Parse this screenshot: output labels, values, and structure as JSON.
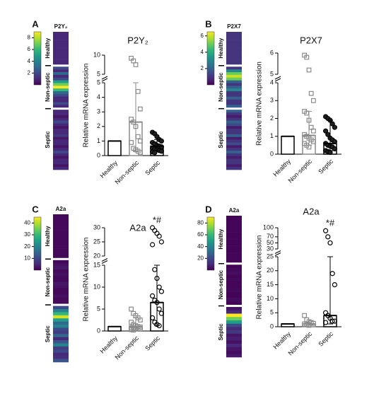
{
  "chart_data": [
    {
      "type": "bar",
      "panel": "A",
      "title": "P2Y₂",
      "ylabel": "Relative mRNA expression",
      "categories": [
        "Healthy",
        "Non-septic",
        "Septic"
      ],
      "values": [
        1,
        2.3,
        0.65
      ],
      "errors": [
        [
          1,
          1
        ],
        [
          0.3,
          5
        ],
        [
          0.35,
          1.1
        ]
      ],
      "bar_colors": [
        "#000000",
        "#8a8a8a",
        "#000000"
      ],
      "markers": [
        "square",
        "square",
        "circle"
      ],
      "marker_fill": [
        "none",
        "none",
        "#222222"
      ],
      "points": [
        [],
        [
          9.2,
          8.5,
          7.5,
          4.4,
          3.2,
          2.5,
          2.3,
          2.0,
          1.3,
          1.0,
          0.9,
          0.5,
          0.4,
          0.3,
          0.2
        ],
        [
          1.6,
          1.5,
          1.3,
          1.1,
          1.0,
          0.9,
          0.8,
          0.7,
          0.65,
          0.6,
          0.5,
          0.45,
          0.4,
          0.35,
          0.3,
          0.25,
          0.2
        ]
      ],
      "ysegments": [
        {
          "ylim": [
            0,
            5
          ],
          "yticks": [
            0,
            1,
            2,
            3,
            4,
            5
          ]
        },
        {
          "ylim": [
            5,
            10
          ],
          "yticks": [
            5,
            10
          ]
        }
      ],
      "heatmap": {
        "title": "P2Y₂",
        "colormap": "viridis",
        "clim": [
          0,
          9
        ],
        "colorbar_ticks": [
          2,
          4,
          6,
          8
        ],
        "groups": [
          {
            "name": "Healthy",
            "values": [
              1,
              1,
              1,
              1,
              1,
              1,
              1,
              1,
              1,
              1,
              1,
              1
            ]
          },
          {
            "name": "Non-septic",
            "values": [
              2,
              1,
              3,
              1,
              2,
              5,
              7,
              9,
              6,
              3,
              2,
              1,
              1,
              2,
              1
            ]
          },
          {
            "name": "Septic",
            "values": [
              1,
              1,
              0.5,
              1,
              2,
              1,
              0.5,
              1,
              1,
              1.5,
              0.5,
              1,
              1,
              0.5,
              1,
              2,
              1,
              0.5,
              1,
              1,
              0.5,
              1
            ]
          }
        ]
      }
    },
    {
      "type": "bar",
      "panel": "B",
      "title": "P2X7",
      "ylabel": "Relative mRNA expression",
      "categories": [
        "Healthy",
        "Non-septic",
        "Septic"
      ],
      "values": [
        1,
        1.05,
        0.6
      ],
      "errors": [
        [
          1,
          1
        ],
        [
          0.5,
          2.4
        ],
        [
          0.2,
          1.9
        ]
      ],
      "bar_colors": [
        "#000000",
        "#8a8a8a",
        "#000000"
      ],
      "markers": [
        "square",
        "square",
        "circle"
      ],
      "marker_fill": [
        "none",
        "none",
        "#222222"
      ],
      "points": [
        [],
        [
          5.9,
          5.8,
          5.2,
          3.4,
          3.0,
          2.4,
          2.3,
          1.9,
          1.5,
          1.3,
          1.1,
          1.0,
          0.9,
          0.8,
          0.7,
          0.6,
          0.5,
          0.4
        ],
        [
          2.1,
          2.0,
          1.9,
          1.7,
          1.5,
          1.3,
          1.1,
          0.9,
          0.8,
          0.7,
          0.6,
          0.5,
          0.45,
          0.4,
          0.3,
          0.2,
          0.15,
          0.1
        ]
      ],
      "ysegments": [
        {
          "ylim": [
            0,
            4
          ],
          "yticks": [
            0,
            1,
            2,
            3,
            4
          ]
        },
        {
          "ylim": [
            5,
            6
          ],
          "yticks": [
            5,
            6
          ]
        }
      ],
      "heatmap": {
        "title": "P2X7",
        "colormap": "viridis",
        "clim": [
          0,
          6.5
        ],
        "colorbar_ticks": [
          2,
          4,
          6
        ],
        "groups": [
          {
            "name": "Healthy",
            "values": [
              1,
              1,
              1,
              1,
              1,
              1,
              1,
              1,
              1,
              1,
              1,
              1
            ]
          },
          {
            "name": "Non-septic",
            "values": [
              1,
              3,
              5,
              6,
              5,
              2,
              1,
              2,
              3,
              1,
              1,
              2,
              1,
              1,
              2
            ]
          },
          {
            "name": "Septic",
            "values": [
              2,
              1,
              0.5,
              1,
              2,
              1.5,
              0.5,
              1,
              1,
              2,
              0.5,
              1,
              1.5,
              0.5,
              1,
              2,
              1,
              0.5,
              1,
              1,
              0.5,
              1
            ]
          }
        ]
      }
    },
    {
      "type": "bar",
      "panel": "C",
      "title": "A2a",
      "ylabel": "Relative mRNA expression",
      "categories": [
        "Healthy",
        "Non-septic",
        "Septic"
      ],
      "values": [
        1,
        1,
        6.5
      ],
      "errors": [
        [
          1,
          1
        ],
        [
          0.3,
          3
        ],
        [
          1.2,
          15
        ]
      ],
      "bar_colors": [
        "#000000",
        "#8a8a8a",
        "#000000"
      ],
      "markers": [
        "square",
        "square",
        "circle"
      ],
      "marker_fill": [
        "none",
        "none",
        "none"
      ],
      "points": [
        [],
        [
          5,
          4,
          3.5,
          3,
          2.5,
          2,
          1.5,
          1.2,
          1,
          0.9,
          0.8,
          0.7,
          0.6,
          0.5,
          0.4,
          0.3,
          0.2
        ],
        [
          30,
          29,
          28,
          27,
          25,
          24,
          14,
          12,
          10,
          9,
          8,
          7,
          6.5,
          5,
          4,
          3,
          2,
          1.5,
          1.2
        ]
      ],
      "ysegments": [
        {
          "ylim": [
            0,
            15
          ],
          "yticks": [
            0,
            5,
            10,
            15
          ]
        },
        {
          "ylim": [
            20,
            30
          ],
          "yticks": [
            20,
            25,
            30
          ]
        }
      ],
      "annotation": "*#",
      "heatmap": {
        "title": "A2a",
        "colormap": "viridis",
        "clim": [
          0,
          45
        ],
        "colorbar_ticks": [
          10,
          20,
          30,
          40
        ],
        "groups": [
          {
            "name": "Healthy",
            "values": [
              1,
              1,
              1,
              1,
              1,
              1,
              1,
              1,
              1,
              1,
              1,
              1,
              1,
              1
            ]
          },
          {
            "name": "Non-septic",
            "values": [
              1,
              2,
              3,
              1,
              2,
              1,
              1,
              3,
              2,
              1,
              1,
              2,
              1,
              1
            ]
          },
          {
            "name": "Septic",
            "values": [
              10,
              20,
              30,
              42,
              25,
              15,
              20,
              10,
              8,
              15,
              5,
              12,
              20,
              8,
              10,
              5,
              6,
              12
            ]
          }
        ]
      }
    },
    {
      "type": "bar",
      "panel": "D",
      "title": "A2a",
      "ylabel": "Relative mRNA expression",
      "categories": [
        "Healthy",
        "Non-septic",
        "Septic"
      ],
      "values": [
        1,
        1,
        4
      ],
      "errors": [
        [
          1,
          1
        ],
        [
          0.5,
          1.5
        ],
        [
          1,
          25
        ]
      ],
      "bar_colors": [
        "#000000",
        "#8a8a8a",
        "#000000"
      ],
      "markers": [
        "square",
        "square",
        "circle"
      ],
      "marker_fill": [
        "none",
        "none",
        "none"
      ],
      "points": [
        [],
        [
          4,
          2.5,
          1.8,
          1.5,
          1.2,
          1,
          0.8,
          0.5
        ],
        [
          90,
          70,
          50,
          19,
          15,
          5,
          4,
          3,
          2,
          2,
          1.5
        ]
      ],
      "ysegments": [
        {
          "ylim": [
            0,
            25
          ],
          "yticks": [
            0,
            5,
            10,
            15,
            20,
            25
          ]
        },
        {
          "ylim": [
            30,
            100
          ],
          "yticks": [
            30,
            50,
            70,
            100
          ]
        }
      ],
      "annotation": "*#",
      "heatmap": {
        "title": "A2a",
        "colormap": "viridis",
        "clim": [
          0,
          90
        ],
        "colorbar_ticks": [
          20,
          40,
          60,
          80
        ],
        "groups": [
          {
            "name": "Healthy",
            "values": [
              1,
              1,
              1,
              1,
              1,
              1,
              1,
              1,
              1,
              1,
              1,
              1,
              1,
              1
            ]
          },
          {
            "name": "Non-septic",
            "values": [
              1,
              2,
              3,
              1,
              2,
              1,
              1,
              2,
              1,
              1,
              3,
              1
            ]
          },
          {
            "name": "Septic",
            "values": [
              5,
              10,
              90,
              70,
              50,
              20,
              10,
              15,
              5,
              8,
              4,
              10,
              5,
              3,
              6
            ]
          }
        ]
      }
    }
  ]
}
